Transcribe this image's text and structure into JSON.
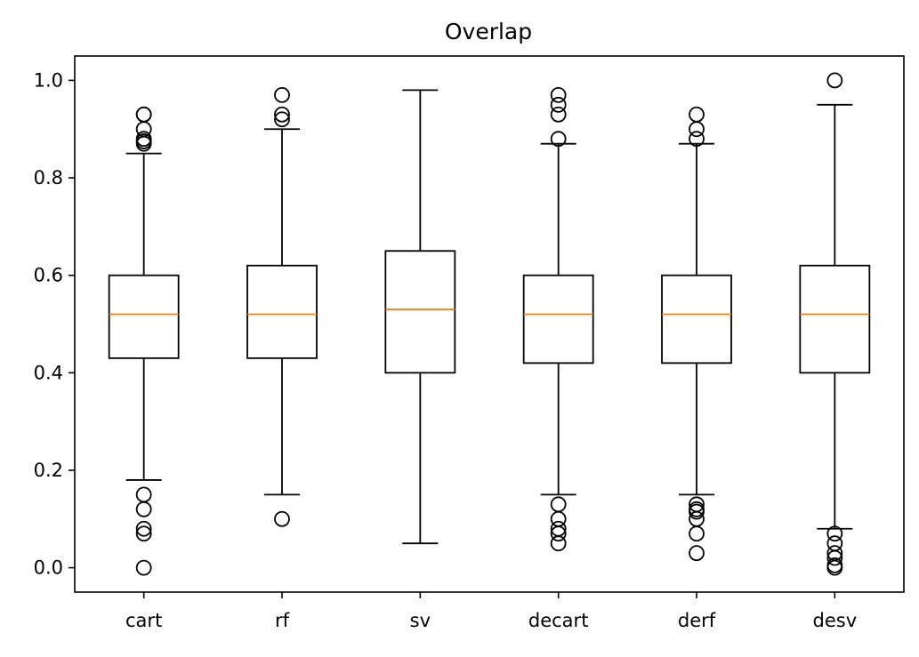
{
  "chart_data": {
    "type": "box",
    "title": "Overlap",
    "xlabel": "",
    "ylabel": "",
    "categories": [
      "cart",
      "rf",
      "sv",
      "decart",
      "derf",
      "desv"
    ],
    "ylim": [
      -0.05,
      1.05
    ],
    "yticks": [
      0.0,
      0.2,
      0.4,
      0.6,
      0.8,
      1.0
    ],
    "ytick_labels": [
      "0.0",
      "0.2",
      "0.4",
      "0.6",
      "0.8",
      "1.0"
    ],
    "grid": false,
    "colors": {
      "box": "#000000",
      "median": "#ff7f0e",
      "background": "#ffffff"
    },
    "boxes": [
      {
        "name": "cart",
        "whisker_low": 0.18,
        "q1": 0.43,
        "median": 0.52,
        "q3": 0.6,
        "whisker_high": 0.85,
        "outliers": [
          0.0,
          0.07,
          0.08,
          0.12,
          0.15,
          0.87,
          0.875,
          0.88,
          0.9,
          0.93,
          0.93
        ]
      },
      {
        "name": "rf",
        "whisker_low": 0.15,
        "q1": 0.43,
        "median": 0.52,
        "q3": 0.62,
        "whisker_high": 0.9,
        "outliers": [
          0.1,
          0.92,
          0.93,
          0.97
        ]
      },
      {
        "name": "sv",
        "whisker_low": 0.05,
        "q1": 0.4,
        "median": 0.53,
        "q3": 0.65,
        "whisker_high": 0.98,
        "outliers": []
      },
      {
        "name": "decart",
        "whisker_low": 0.15,
        "q1": 0.42,
        "median": 0.52,
        "q3": 0.6,
        "whisker_high": 0.87,
        "outliers": [
          0.05,
          0.07,
          0.08,
          0.1,
          0.13,
          0.88,
          0.93,
          0.95,
          0.97
        ]
      },
      {
        "name": "derf",
        "whisker_low": 0.15,
        "q1": 0.42,
        "median": 0.52,
        "q3": 0.6,
        "whisker_high": 0.87,
        "outliers": [
          0.03,
          0.07,
          0.1,
          0.115,
          0.12,
          0.13,
          0.88,
          0.9,
          0.93
        ]
      },
      {
        "name": "desv",
        "whisker_low": 0.08,
        "q1": 0.4,
        "median": 0.52,
        "q3": 0.62,
        "whisker_high": 0.95,
        "outliers": [
          0.0,
          0.005,
          0.02,
          0.03,
          0.05,
          0.07,
          1.0
        ]
      }
    ]
  }
}
